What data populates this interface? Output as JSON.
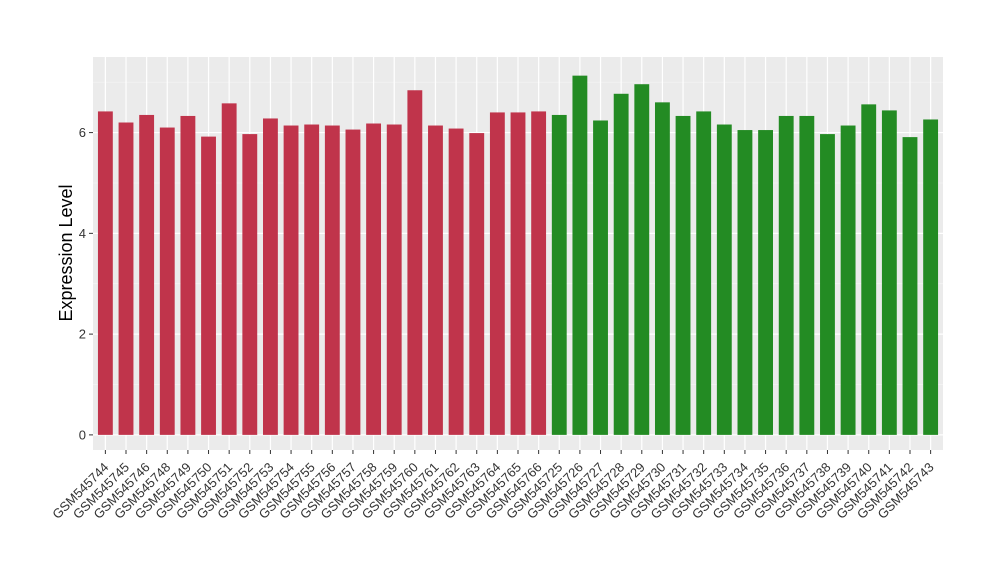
{
  "chart_data": {
    "type": "bar",
    "title": "",
    "xlabel": "",
    "ylabel": "Expression Level",
    "ylim": [
      -0.3,
      7.5
    ],
    "yticks": [
      0,
      2,
      4,
      6
    ],
    "grid": true,
    "legend": "none",
    "categories": [
      "GSM545744",
      "GSM545745",
      "GSM545746",
      "GSM545748",
      "GSM545749",
      "GSM545750",
      "GSM545751",
      "GSM545752",
      "GSM545753",
      "GSM545754",
      "GSM545755",
      "GSM545756",
      "GSM545757",
      "GSM545758",
      "GSM545759",
      "GSM545760",
      "GSM545761",
      "GSM545762",
      "GSM545763",
      "GSM545764",
      "GSM545765",
      "GSM545766",
      "GSM545725",
      "GSM545726",
      "GSM545727",
      "GSM545728",
      "GSM545729",
      "GSM545730",
      "GSM545731",
      "GSM545732",
      "GSM545733",
      "GSM545734",
      "GSM545735",
      "GSM545736",
      "GSM545737",
      "GSM545738",
      "GSM545739",
      "GSM545740",
      "GSM545741",
      "GSM545742",
      "GSM545743"
    ],
    "values": [
      6.42,
      6.2,
      6.35,
      6.1,
      6.33,
      5.92,
      6.58,
      5.97,
      6.28,
      6.14,
      6.16,
      6.14,
      6.06,
      6.18,
      6.16,
      6.84,
      6.14,
      6.08,
      5.99,
      6.4,
      6.4,
      6.42,
      6.35,
      7.13,
      6.24,
      6.77,
      6.96,
      6.6,
      6.33,
      6.42,
      6.16,
      6.05,
      6.05,
      6.33,
      6.33,
      5.97,
      6.14,
      6.56,
      6.44,
      5.91,
      6.26
    ],
    "groups": [
      {
        "count": 22,
        "color": "#c0344b"
      },
      {
        "count": 19,
        "color": "#238b23"
      }
    ],
    "colors": {
      "panel": "#ebebeb",
      "grid_major": "#ffffff",
      "grid_minor": "#f5f5f5",
      "group1": "#c0344b",
      "group2": "#238b23"
    }
  }
}
